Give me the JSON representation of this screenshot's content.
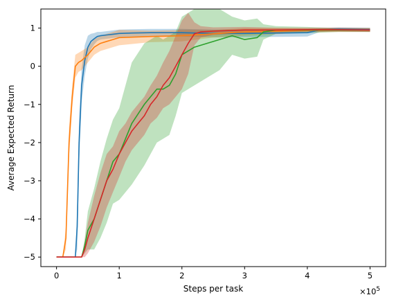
{
  "chart_data": {
    "type": "line",
    "xlabel": "Steps per task",
    "ylabel": "Average Expected Return",
    "x_multiplier": "×10",
    "x_multiplier_exp": "5",
    "xlim": [
      -0.25,
      5.25
    ],
    "ylim": [
      -5.25,
      1.5
    ],
    "xticks": [
      0,
      1,
      2,
      3,
      4,
      5
    ],
    "xtick_labels": [
      "0",
      "1",
      "2",
      "3",
      "4",
      "5"
    ],
    "yticks": [
      -5,
      -4,
      -3,
      -2,
      -1,
      0,
      1
    ],
    "ytick_labels": [
      "−5",
      "−4",
      "−3",
      "−2",
      "−1",
      "0",
      "1"
    ],
    "grid": false,
    "legend": "none",
    "series": [
      {
        "color": "#1f77b4",
        "x": [
          0,
          0.3,
          0.33,
          0.36,
          0.4,
          0.45,
          0.5,
          0.55,
          0.6,
          0.65,
          0.7,
          0.8,
          0.9,
          1.0,
          1.2,
          1.5,
          2.0,
          2.5,
          3.0,
          3.5,
          4.0,
          4.2,
          4.5,
          5.0
        ],
        "y": [
          -5,
          -5,
          -4.2,
          -2.0,
          -0.5,
          0.15,
          0.5,
          0.65,
          0.72,
          0.78,
          0.8,
          0.82,
          0.84,
          0.86,
          0.87,
          0.88,
          0.88,
          0.86,
          0.86,
          0.87,
          0.88,
          0.95,
          0.97,
          0.96
        ],
        "band": [
          0,
          0,
          0.6,
          0.6,
          0.45,
          0.4,
          0.3,
          0.2,
          0.15,
          0.12,
          0.1,
          0.1,
          0.1,
          0.1,
          0.1,
          0.1,
          0.1,
          0.1,
          0.1,
          0.1,
          0.1,
          0.05,
          0.05,
          0.05
        ]
      },
      {
        "color": "#ff7f0e",
        "x": [
          0,
          0.1,
          0.15,
          0.2,
          0.25,
          0.3,
          0.35,
          0.4,
          0.5,
          0.6,
          0.7,
          0.8,
          0.9,
          1.0,
          1.5,
          2.0,
          2.5,
          3.0,
          3.5,
          4.0,
          4.5,
          5.0
        ],
        "y": [
          -5,
          -5,
          -4.5,
          -2.0,
          -0.8,
          0.0,
          0.1,
          0.15,
          0.3,
          0.5,
          0.6,
          0.65,
          0.7,
          0.75,
          0.78,
          0.8,
          0.85,
          0.9,
          0.92,
          0.94,
          0.95,
          0.95
        ],
        "band": [
          0,
          0,
          0.3,
          0.4,
          0.3,
          0.3,
          0.25,
          0.25,
          0.2,
          0.2,
          0.2,
          0.2,
          0.2,
          0.2,
          0.15,
          0.15,
          0.1,
          0.1,
          0.08,
          0.05,
          0.05,
          0.05
        ]
      },
      {
        "color": "#2ca02c",
        "x": [
          0,
          0.4,
          0.45,
          0.5,
          0.6,
          0.7,
          0.8,
          0.9,
          1.0,
          1.2,
          1.4,
          1.6,
          1.7,
          1.8,
          1.9,
          2.0,
          2.1,
          2.2,
          2.4,
          2.6,
          2.8,
          3.0,
          3.2,
          3.3,
          3.5,
          4.0,
          4.5,
          5.0
        ],
        "y": [
          -5,
          -5,
          -4.7,
          -4.3,
          -4.0,
          -3.5,
          -3.0,
          -2.5,
          -2.3,
          -1.5,
          -1.0,
          -0.6,
          -0.6,
          -0.5,
          -0.2,
          0.3,
          0.4,
          0.5,
          0.6,
          0.7,
          0.8,
          0.7,
          0.75,
          0.9,
          0.95,
          0.95,
          0.95,
          0.95
        ],
        "band": [
          0,
          0,
          0.2,
          0.5,
          0.8,
          1.0,
          1.1,
          1.1,
          1.2,
          1.6,
          1.6,
          1.4,
          1.3,
          1.3,
          1.1,
          1.0,
          1.0,
          1.0,
          0.9,
          0.8,
          0.5,
          0.5,
          0.5,
          0.2,
          0.1,
          0.08,
          0.05,
          0.05
        ]
      },
      {
        "color": "#d62728",
        "x": [
          0,
          0.4,
          0.45,
          0.5,
          0.6,
          0.7,
          0.8,
          0.9,
          1.0,
          1.1,
          1.2,
          1.3,
          1.4,
          1.5,
          1.6,
          1.7,
          1.8,
          1.9,
          2.0,
          2.1,
          2.2,
          2.3,
          2.5,
          3.0,
          3.5,
          4.0,
          4.5,
          5.0
        ],
        "y": [
          -5,
          -5,
          -4.8,
          -4.5,
          -4.0,
          -3.5,
          -3.0,
          -2.7,
          -2.3,
          -2.0,
          -1.7,
          -1.5,
          -1.3,
          -1.0,
          -0.8,
          -0.5,
          -0.3,
          0.0,
          0.3,
          0.6,
          0.85,
          0.9,
          0.92,
          0.95,
          0.95,
          0.96,
          0.96,
          0.95
        ],
        "band": [
          0,
          0,
          0.2,
          0.4,
          0.6,
          0.7,
          0.7,
          0.6,
          0.6,
          0.5,
          0.5,
          0.5,
          0.5,
          0.5,
          0.55,
          0.6,
          0.7,
          0.8,
          0.9,
          0.8,
          0.3,
          0.15,
          0.1,
          0.08,
          0.06,
          0.05,
          0.05,
          0.05
        ]
      }
    ]
  }
}
